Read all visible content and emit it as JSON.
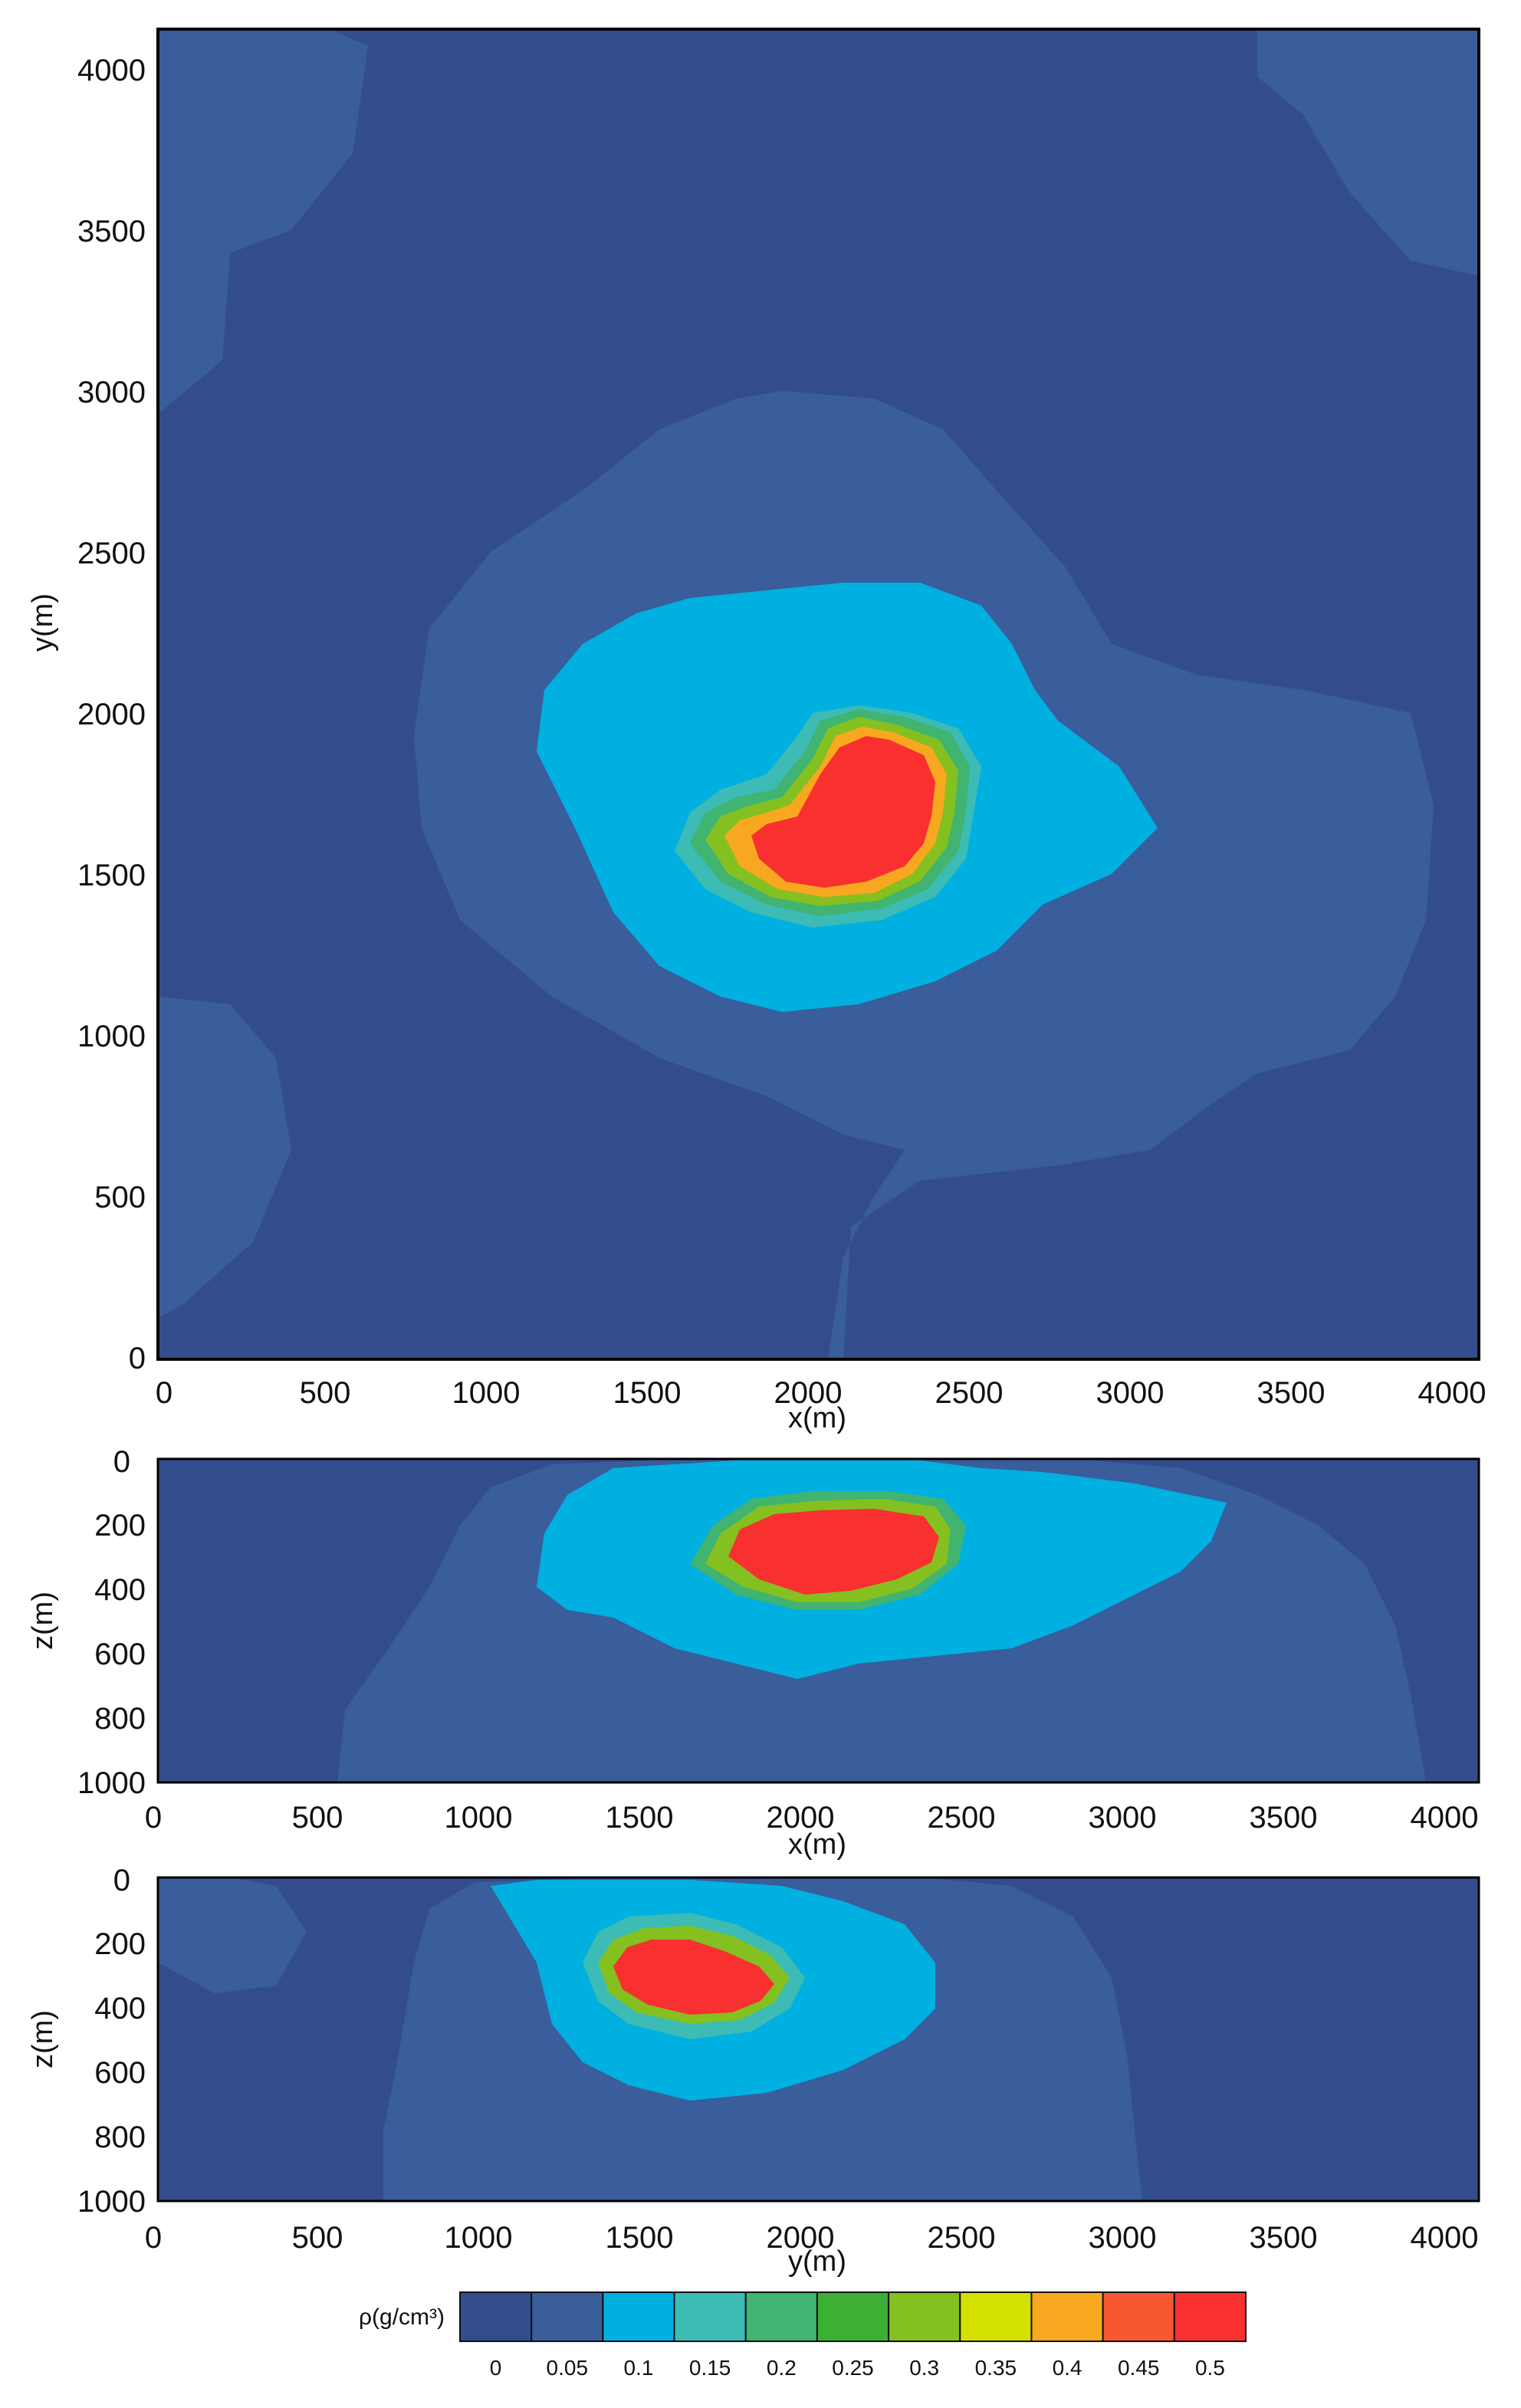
{
  "chart_data": [
    {
      "type": "heatmap",
      "panel": "top",
      "xlabel": "x(m)",
      "ylabel": "y(m)",
      "xlim": [
        0,
        4100
      ],
      "ylim": [
        0,
        4100
      ],
      "x_ticks": [
        "0",
        "500",
        "1000",
        "1500",
        "2000",
        "2500",
        "3000",
        "3500",
        "4000"
      ],
      "y_ticks": [
        "0",
        "500",
        "1000",
        "1500",
        "2000",
        "2500",
        "3000",
        "3500",
        "4000"
      ],
      "anomaly_center": [
        2150,
        1700
      ],
      "peak_value": 0.5
    },
    {
      "type": "heatmap",
      "panel": "middle",
      "xlabel": "x(m)",
      "ylabel": "z(m)",
      "xlim": [
        0,
        4100
      ],
      "ylim": [
        1000,
        0
      ],
      "x_ticks": [
        "0",
        "500",
        "1000",
        "1500",
        "2000",
        "2500",
        "3000",
        "3500",
        "4000"
      ],
      "y_ticks": [
        "0",
        "200",
        "400",
        "600",
        "800",
        "1000"
      ],
      "anomaly_center": [
        2100,
        300
      ],
      "peak_value": 0.5
    },
    {
      "type": "heatmap",
      "panel": "bottom",
      "xlabel": "y(m)",
      "ylabel": "z(m)",
      "xlim": [
        0,
        4100
      ],
      "ylim": [
        1000,
        0
      ],
      "x_ticks": [
        "0",
        "500",
        "1000",
        "1500",
        "2000",
        "2500",
        "3000",
        "3500",
        "4000"
      ],
      "y_ticks": [
        "0",
        "200",
        "400",
        "600",
        "800",
        "1000"
      ],
      "anomaly_center": [
        1650,
        280
      ],
      "peak_value": 0.5
    }
  ],
  "colorbar": {
    "label": "ρ(g/cm³)",
    "ticks": [
      "0",
      "0.05",
      "0.1",
      "0.15",
      "0.2",
      "0.25",
      "0.3",
      "0.35",
      "0.4",
      "0.45",
      "0.5"
    ],
    "colors": [
      "#334d8c",
      "#3a5d9c",
      "#00b0e0",
      "#3cbcb4",
      "#40b470",
      "#3cb034",
      "#84c020",
      "#d4e000",
      "#f8a820",
      "#f85830",
      "#f83030"
    ]
  }
}
